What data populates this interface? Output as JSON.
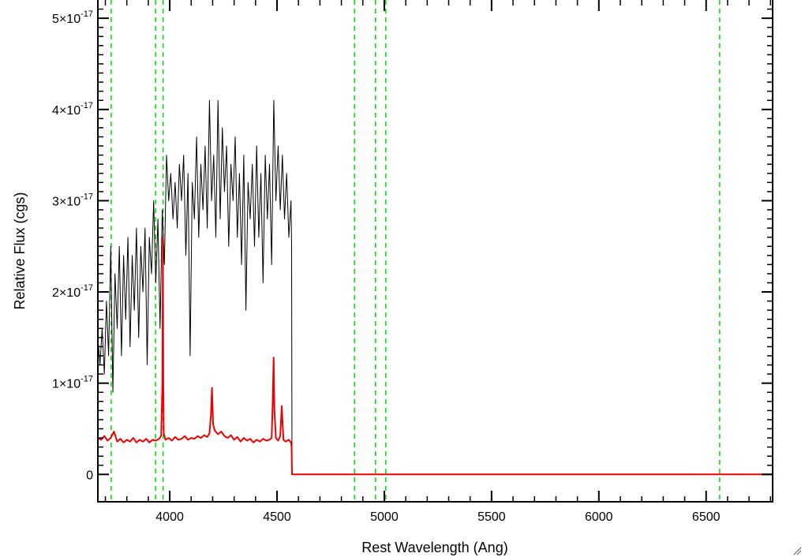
{
  "chart_data": {
    "type": "line",
    "xlabel": "Rest Wavelength (Ang)",
    "ylabel": "Relative Flux (cgs)",
    "xlim": [
      3665,
      6810
    ],
    "ylim": [
      -3e-18,
      5.2e-17
    ],
    "x_ticks": [
      4000,
      4500,
      5000,
      5500,
      6000,
      6500
    ],
    "y_ticks": [
      {
        "value": 0,
        "base": "0",
        "exp": ""
      },
      {
        "value": 1e-17,
        "base": "1×10",
        "exp": "-17"
      },
      {
        "value": 2e-17,
        "base": "2×10",
        "exp": "-17"
      },
      {
        "value": 3e-17,
        "base": "3×10",
        "exp": "-17"
      },
      {
        "value": 4e-17,
        "base": "4×10",
        "exp": "-17"
      },
      {
        "value": 5e-17,
        "base": "5×10",
        "exp": "-17"
      }
    ],
    "grid": false,
    "line_markers": {
      "color": "#00dd00",
      "style": "dashed",
      "x": [
        3727,
        3934,
        3969,
        4861,
        4959,
        5007,
        6563
      ]
    },
    "series": [
      {
        "color": "#000000",
        "x": [
          3665,
          3675,
          3685,
          3695,
          3705,
          3715,
          3725,
          3735,
          3745,
          3755,
          3765,
          3775,
          3785,
          3795,
          3805,
          3815,
          3825,
          3835,
          3845,
          3855,
          3865,
          3875,
          3885,
          3895,
          3905,
          3915,
          3925,
          3935,
          3945,
          3955,
          3965,
          3975,
          3985,
          3995,
          4005,
          4015,
          4025,
          4035,
          4045,
          4055,
          4065,
          4075,
          4085,
          4095,
          4105,
          4115,
          4125,
          4135,
          4145,
          4155,
          4165,
          4175,
          4185,
          4195,
          4205,
          4215,
          4225,
          4235,
          4245,
          4255,
          4265,
          4275,
          4285,
          4295,
          4305,
          4315,
          4325,
          4335,
          4345,
          4355,
          4365,
          4375,
          4385,
          4395,
          4405,
          4415,
          4425,
          4435,
          4445,
          4455,
          4465,
          4475,
          4485,
          4495,
          4505,
          4515,
          4525,
          4535,
          4545,
          4555,
          4565,
          4568,
          4570,
          4600,
          6810
        ],
        "y": [
          1.5e-17,
          1.2e-17,
          1.6e-17,
          1.1e-17,
          1.9e-17,
          1.3e-17,
          2.5e-17,
          9e-18,
          2.2e-17,
          1.6e-17,
          2.5e-17,
          1.3e-17,
          2.4e-17,
          1.7e-17,
          2.6e-17,
          1.4e-17,
          2.4e-17,
          1.8e-17,
          2.7e-17,
          1.5e-17,
          2.5e-17,
          2e-17,
          2.7e-17,
          1.2e-17,
          2.6e-17,
          2.2e-17,
          3e-17,
          2.1e-17,
          2.8e-17,
          1.6e-17,
          2.9e-17,
          2.3e-17,
          3.5e-17,
          3e-17,
          3.3e-17,
          2.8e-17,
          3.2e-17,
          2.7e-17,
          3.4e-17,
          3e-17,
          3.5e-17,
          2.4e-17,
          3.3e-17,
          1.3e-17,
          3.2e-17,
          2.8e-17,
          3.7e-17,
          2.6e-17,
          3.4e-17,
          2.9e-17,
          3.6e-17,
          2.7e-17,
          4.1e-17,
          3e-17,
          3.5e-17,
          2.6e-17,
          4.1e-17,
          2.8e-17,
          3.8e-17,
          3.1e-17,
          3.6e-17,
          2.5e-17,
          3.4e-17,
          3e-17,
          3.7e-17,
          2.6e-17,
          3.3e-17,
          2.3e-17,
          3.5e-17,
          1.8e-17,
          3.2e-17,
          2.8e-17,
          3.4e-17,
          2.5e-17,
          3.6e-17,
          2.6e-17,
          3.3e-17,
          2.1e-17,
          3.5e-17,
          2.8e-17,
          3.4e-17,
          2.3e-17,
          4.1e-17,
          3e-17,
          3.6e-17,
          2.9e-17,
          3.5e-17,
          2.8e-17,
          3.3e-17,
          2.6e-17,
          3e-17,
          2.5e-17,
          0,
          0,
          0
        ]
      },
      {
        "color": "#ee0000",
        "x": [
          3665,
          3680,
          3695,
          3710,
          3725,
          3740,
          3755,
          3770,
          3785,
          3800,
          3815,
          3830,
          3845,
          3860,
          3875,
          3890,
          3905,
          3920,
          3935,
          3950,
          3960,
          3966,
          3968,
          3970,
          3972,
          3980,
          3995,
          4010,
          4025,
          4040,
          4055,
          4070,
          4085,
          4100,
          4115,
          4130,
          4145,
          4160,
          4175,
          4185,
          4192,
          4197,
          4202,
          4210,
          4225,
          4240,
          4255,
          4270,
          4285,
          4300,
          4315,
          4330,
          4345,
          4360,
          4375,
          4390,
          4405,
          4420,
          4435,
          4450,
          4465,
          4475,
          4480,
          4484,
          4488,
          4495,
          4505,
          4515,
          4522,
          4526,
          4530,
          4540,
          4555,
          4565,
          4568,
          4570,
          4600,
          6810
        ],
        "y": [
          4e-18,
          3.8e-18,
          4.2e-18,
          3.7e-18,
          4e-18,
          4.7e-18,
          3.6e-18,
          3.9e-18,
          3.5e-18,
          3.8e-18,
          3.6e-18,
          4e-18,
          3.5e-18,
          3.8e-18,
          3.6e-18,
          3.9e-18,
          3.5e-18,
          3.8e-18,
          3.7e-18,
          3.9e-18,
          4.2e-18,
          1e-17,
          2.6e-17,
          1e-17,
          4.5e-18,
          3.8e-18,
          4e-18,
          3.7e-18,
          4.1e-18,
          3.8e-18,
          3.9e-18,
          4.2e-18,
          3.8e-18,
          4e-18,
          3.9e-18,
          4.2e-18,
          4e-18,
          4.3e-18,
          4.1e-18,
          4.5e-18,
          6.5e-18,
          9.5e-18,
          5.5e-18,
          4.8e-18,
          4.4e-18,
          4.7e-18,
          4.2e-18,
          4e-18,
          4.3e-18,
          3.8e-18,
          4.1e-18,
          3.6e-18,
          4e-18,
          3.7e-18,
          3.9e-18,
          3.5e-18,
          3.8e-18,
          3.6e-18,
          3.9e-18,
          3.7e-18,
          3.8e-18,
          4e-18,
          8e-18,
          1.28e-17,
          7e-18,
          4e-18,
          3.7e-18,
          4.2e-18,
          7.5e-18,
          5.5e-18,
          3.8e-18,
          3.6e-18,
          3.8e-18,
          3.5e-18,
          3e-18,
          0,
          0,
          0
        ]
      }
    ]
  }
}
